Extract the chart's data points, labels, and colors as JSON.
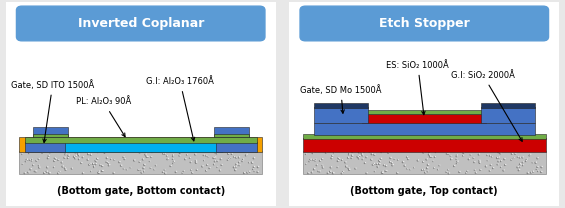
{
  "title_left": "Inverted Coplanar",
  "title_right": "Etch Stopper",
  "subtitle_left": "(Bottom gate, Bottom contact)",
  "subtitle_right": "(Bottom gate, Top contact)",
  "title_bg_color": "#5b9bd5",
  "panel_border_color": "#5b9bd5",
  "bg_color": "#e8e8e8",
  "colors": {
    "orange": "#f5a000",
    "blue_ito": "#4472c4",
    "blue_light": "#00b0f0",
    "green": "#70ad47",
    "red": "#cc0000",
    "dark_blue": "#1f3864",
    "substrate": "#b8b8b8"
  }
}
